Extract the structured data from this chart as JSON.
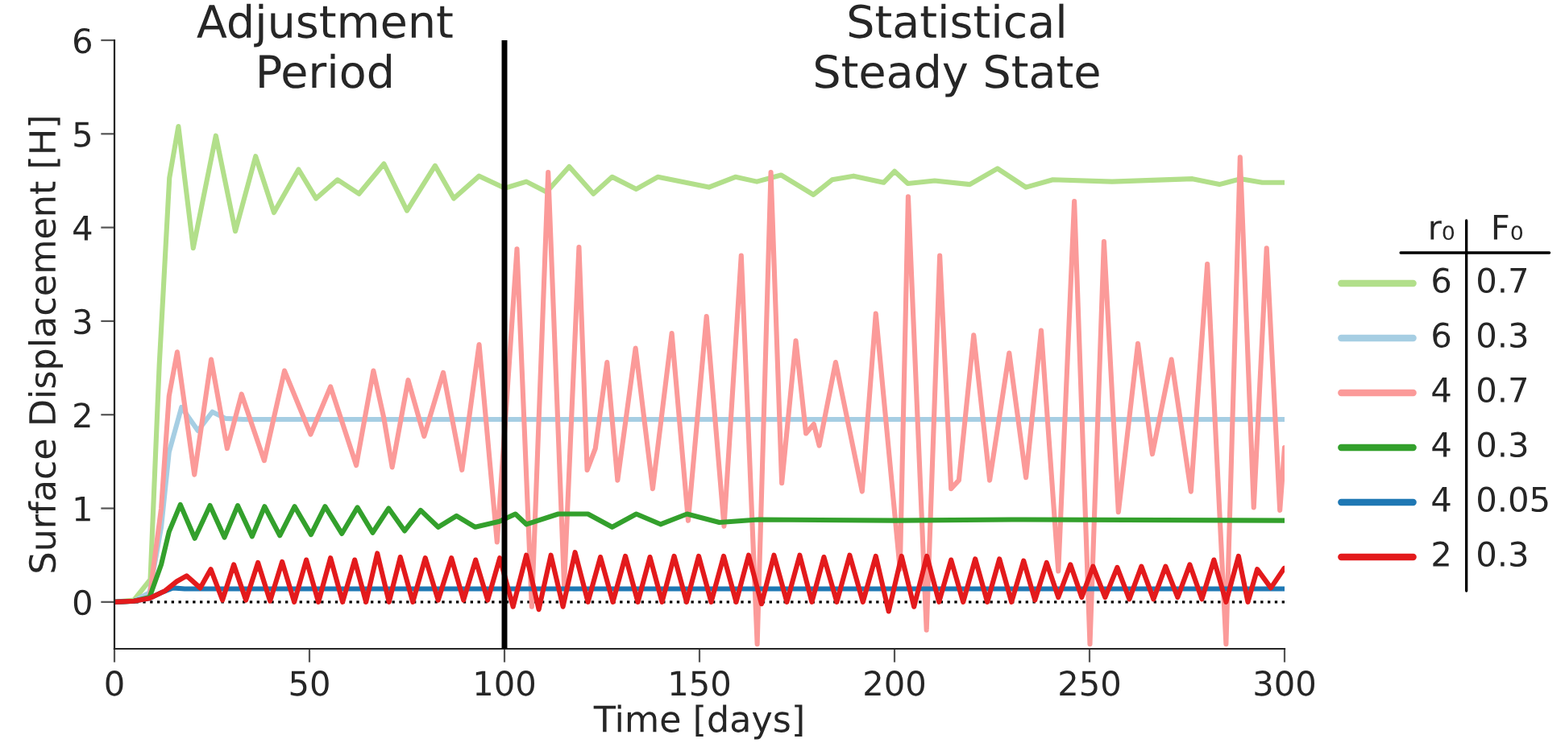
{
  "chart_data": {
    "type": "line",
    "xlabel": "Time [days]",
    "ylabel": "Surface Displacement [H]",
    "legend_title": "r₀ F₀",
    "annotations": [
      "Adjustment\nPeriod",
      "Statistical\nSteady State"
    ],
    "xlim": [
      0,
      300
    ],
    "xticks": [
      0,
      50,
      100,
      150,
      200,
      250,
      300
    ],
    "ylim": [
      -0.5,
      6
    ],
    "yticks": [
      0,
      1,
      2,
      3,
      4,
      5,
      6
    ],
    "grid": false,
    "legend": "right",
    "line_style": "solid",
    "marker": "none",
    "ref_lines": [
      {
        "axis": "x",
        "value": 100,
        "color": "#000000",
        "line_style": "solid"
      },
      {
        "axis": "y",
        "value": 0,
        "color": "#000000",
        "line_style": "dotted"
      }
    ],
    "series": [
      {
        "name": "6 0.7",
        "color": "#b2df8a",
        "x": [
          0,
          5,
          9.2,
          11.5,
          14.1,
          16.4,
          20.2,
          26,
          31,
          36.2,
          40.9,
          47.2,
          51.7,
          57.2,
          62.7,
          69.1,
          75,
          82.2,
          87,
          93.5,
          100.1,
          105.6,
          110.8,
          116.6,
          122.8,
          127.6,
          133.8,
          139.3,
          152.4,
          159.2,
          164.7,
          170.9,
          179.2,
          184,
          189.5,
          197.2,
          200,
          203.4,
          210.3,
          219.3,
          226.4,
          233.7,
          240.6,
          255.8,
          276.4,
          283.3,
          288.8,
          294.3,
          300
        ],
        "values": [
          0,
          0.02,
          0.24,
          2.53,
          4.53,
          5.08,
          3.78,
          4.98,
          3.96,
          4.76,
          4.16,
          4.62,
          4.31,
          4.51,
          4.36,
          4.68,
          4.18,
          4.66,
          4.31,
          4.55,
          4.42,
          4.49,
          4.38,
          4.65,
          4.36,
          4.54,
          4.41,
          4.54,
          4.43,
          4.54,
          4.49,
          4.56,
          4.35,
          4.51,
          4.55,
          4.48,
          4.6,
          4.47,
          4.5,
          4.46,
          4.63,
          4.43,
          4.51,
          4.49,
          4.52,
          4.46,
          4.52,
          4.48,
          4.48
        ]
      },
      {
        "name": "6 0.3",
        "color": "#a6cee3",
        "x": [
          0,
          5,
          9,
          12,
          14,
          17.2,
          21.4,
          25.1,
          28.5,
          33,
          300
        ],
        "values": [
          0,
          0.01,
          0.1,
          0.8,
          1.6,
          2.08,
          1.83,
          2.03,
          1.96,
          1.95,
          1.95
        ]
      },
      {
        "name": "4 0.7",
        "color": "#fb9a99",
        "x": [
          0,
          5,
          9,
          12,
          14,
          16.1,
          20.5,
          24.8,
          28.9,
          32.6,
          38.4,
          43.6,
          50.3,
          55.4,
          62,
          66.4,
          69.1,
          71.2,
          75.3,
          79.4,
          84.3,
          89.1,
          93.5,
          98.1,
          103.2,
          107,
          111.2,
          115.3,
          119.1,
          121.2,
          123.3,
          126.3,
          129,
          133.6,
          138,
          142.9,
          147.1,
          151.8,
          156.3,
          160.7,
          164.8,
          168.3,
          171.1,
          174.7,
          177.3,
          179.3,
          180.7,
          184.9,
          191.7,
          195.2,
          201.4,
          203.5,
          208.2,
          211.6,
          214.5,
          216.5,
          220.3,
          224.4,
          229.4,
          233.7,
          237.6,
          242,
          246.1,
          250.1,
          253.7,
          257.4,
          262.4,
          266.1,
          271,
          276,
          280.2,
          285,
          288.6,
          292.1,
          295.4,
          298.8,
          300
        ],
        "values": [
          0,
          0.01,
          0.05,
          1.0,
          2.2,
          2.67,
          1.36,
          2.59,
          1.64,
          2.22,
          1.51,
          2.47,
          1.79,
          2.3,
          1.46,
          2.47,
          1.96,
          1.44,
          2.37,
          1.77,
          2.45,
          1.41,
          2.75,
          0.64,
          3.77,
          -0.05,
          4.59,
          0.18,
          3.79,
          1.41,
          1.64,
          2.56,
          1.3,
          2.71,
          1.21,
          2.87,
          0.87,
          3.05,
          0.81,
          3.7,
          -0.45,
          4.59,
          1.27,
          2.79,
          1.8,
          1.9,
          1.67,
          2.56,
          1.18,
          3.08,
          0.35,
          4.33,
          -0.3,
          3.7,
          1.21,
          1.3,
          2.85,
          1.3,
          2.66,
          1.33,
          2.9,
          0.33,
          4.28,
          -0.45,
          3.85,
          0.96,
          2.76,
          1.58,
          2.59,
          1.18,
          3.61,
          -0.45,
          4.75,
          1.01,
          3.78,
          0.98,
          1.65
        ]
      },
      {
        "name": "4 0.3",
        "color": "#33a02c",
        "x": [
          0,
          5,
          9,
          12,
          14,
          16.9,
          20.6,
          24.5,
          28.2,
          31.6,
          35.3,
          38.5,
          42.4,
          46.2,
          50.4,
          54,
          58.3,
          62.3,
          66.2,
          70.3,
          74.4,
          78.5,
          83,
          87.7,
          92.5,
          98.7,
          102.8,
          105.6,
          113.8,
          121.4,
          127.6,
          133.8,
          140,
          146.8,
          155.1,
          165,
          200,
          230,
          300
        ],
        "values": [
          0,
          0.01,
          0.05,
          0.4,
          0.75,
          1.04,
          0.68,
          1.03,
          0.69,
          1.03,
          0.7,
          1.02,
          0.71,
          1.02,
          0.72,
          1.02,
          0.73,
          1.01,
          0.74,
          1.0,
          0.76,
          0.98,
          0.8,
          0.92,
          0.8,
          0.86,
          0.94,
          0.83,
          0.94,
          0.94,
          0.8,
          0.94,
          0.83,
          0.94,
          0.85,
          0.88,
          0.87,
          0.88,
          0.87
        ]
      },
      {
        "name": "4 0.05",
        "color": "#1f78b4",
        "x": [
          0,
          5,
          9,
          12,
          15,
          18,
          300
        ],
        "values": [
          0,
          0.01,
          0.04,
          0.1,
          0.15,
          0.14,
          0.14
        ]
      },
      {
        "name": "2 0.3",
        "color": "#e31a1c",
        "x": [
          0,
          5,
          9,
          13,
          16,
          18.5,
          22,
          24.7,
          27.7,
          30.6,
          33.7,
          36.8,
          39.9,
          43,
          46.1,
          49.2,
          52.3,
          55.4,
          58.5,
          61.6,
          64.5,
          67.4,
          70.4,
          73.3,
          76.5,
          79.7,
          83,
          86.4,
          89.5,
          92.6,
          95.7,
          98.8,
          102.2,
          105.6,
          108.8,
          111.9,
          115,
          118.1,
          121.4,
          124.6,
          127.8,
          131,
          134.2,
          137.3,
          140.4,
          143.5,
          146.7,
          149.8,
          153,
          156.2,
          159.4,
          162.6,
          165.9,
          169.1,
          172.4,
          175.7,
          178.8,
          181.9,
          185.2,
          188.5,
          191.9,
          195.2,
          198.5,
          201.8,
          205,
          208.3,
          211.4,
          214.5,
          217.6,
          220.7,
          223.8,
          226.9,
          230,
          233.1,
          236,
          239,
          242,
          245.1,
          248,
          250.9,
          254,
          257.1,
          260.2,
          263.3,
          266.4,
          269.5,
          272.6,
          275.7,
          278.8,
          281.9,
          285,
          288.2,
          290.6,
          293,
          296.5,
          299.9
        ],
        "values": [
          0,
          0.01,
          0.04,
          0.12,
          0.22,
          0.28,
          0.15,
          0.35,
          0.02,
          0.4,
          0.02,
          0.42,
          0.01,
          0.43,
          0.0,
          0.45,
          0.0,
          0.47,
          0.0,
          0.45,
          0.0,
          0.52,
          0.0,
          0.48,
          0.0,
          0.47,
          0.02,
          0.47,
          0.02,
          0.45,
          0.02,
          0.47,
          -0.05,
          0.5,
          -0.08,
          0.5,
          -0.05,
          0.53,
          0.0,
          0.48,
          0.0,
          0.49,
          0.0,
          0.48,
          0.0,
          0.49,
          0.0,
          0.49,
          0.0,
          0.49,
          0.0,
          0.5,
          -0.02,
          0.5,
          0.0,
          0.5,
          0.0,
          0.48,
          0.0,
          0.5,
          0.0,
          0.49,
          -0.1,
          0.49,
          -0.05,
          0.49,
          0.0,
          0.45,
          0.0,
          0.46,
          0.0,
          0.46,
          0.0,
          0.44,
          0.02,
          0.42,
          0.05,
          0.4,
          0.05,
          0.38,
          0.05,
          0.37,
          0.03,
          0.38,
          0.03,
          0.38,
          0.05,
          0.4,
          0.03,
          0.45,
          0.0,
          0.49,
          0.0,
          0.35,
          0.15,
          0.36
        ]
      }
    ]
  }
}
